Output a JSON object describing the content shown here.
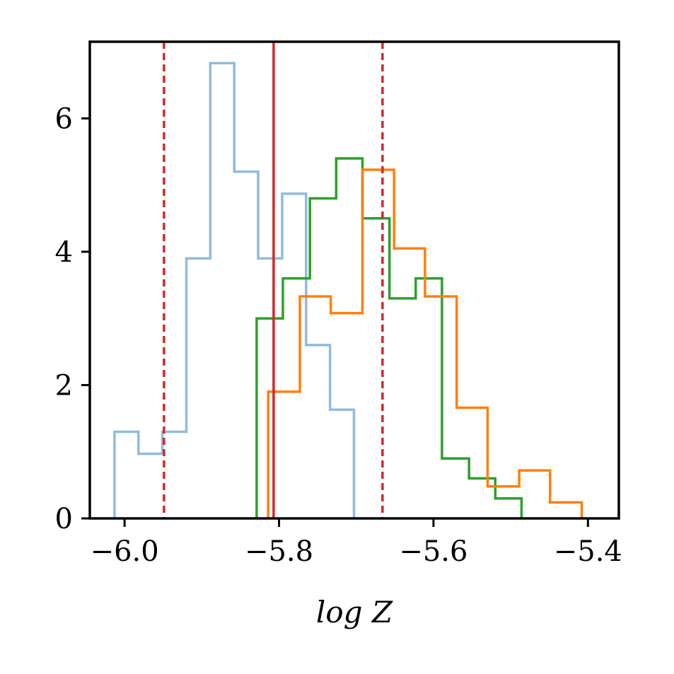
{
  "chart_data": {
    "type": "histogram",
    "title": "",
    "xlabel": "log Z",
    "ylabel": "",
    "xlim": [
      -6.045,
      -5.36
    ],
    "ylim": [
      0,
      7.15
    ],
    "xticks": [
      -6.0,
      -5.8,
      -5.6,
      -5.4
    ],
    "xtick_labels": [
      "−6.0",
      "−5.8",
      "−5.6",
      "−5.4"
    ],
    "yticks": [
      0,
      2,
      4,
      6
    ],
    "ytick_labels": [
      "0",
      "2",
      "4",
      "6"
    ],
    "grid": false,
    "legend": null,
    "series": [
      {
        "color": "#8fbcdb",
        "edges": [
          -6.013,
          -5.982,
          -5.951,
          -5.92,
          -5.889,
          -5.858,
          -5.827,
          -5.796,
          -5.765,
          -5.734,
          -5.703
        ],
        "values": [
          1.3,
          0.97,
          1.3,
          3.9,
          6.83,
          5.2,
          3.9,
          4.87,
          2.6,
          1.63
        ]
      },
      {
        "color": "#2ca02c",
        "edges": [
          -5.829,
          -5.795,
          -5.76,
          -5.726,
          -5.692,
          -5.657,
          -5.623,
          -5.589,
          -5.554,
          -5.52,
          -5.486
        ],
        "values": [
          3.0,
          3.6,
          4.8,
          5.4,
          4.5,
          3.3,
          3.6,
          0.9,
          0.6,
          0.3
        ]
      },
      {
        "color": "#ff7f0e",
        "edges": [
          -5.814,
          -5.773,
          -5.733,
          -5.692,
          -5.651,
          -5.611,
          -5.57,
          -5.53,
          -5.489,
          -5.449,
          -5.408
        ],
        "values": [
          1.9,
          3.33,
          3.08,
          5.23,
          4.05,
          3.33,
          1.66,
          0.48,
          0.72,
          0.24
        ]
      }
    ],
    "vlines": [
      {
        "x": -5.949,
        "style": "dashed",
        "color": "#d62728"
      },
      {
        "x": -5.807,
        "style": "solid",
        "color": "#d62728"
      },
      {
        "x": -5.666,
        "style": "dashed",
        "color": "#d62728"
      }
    ]
  }
}
